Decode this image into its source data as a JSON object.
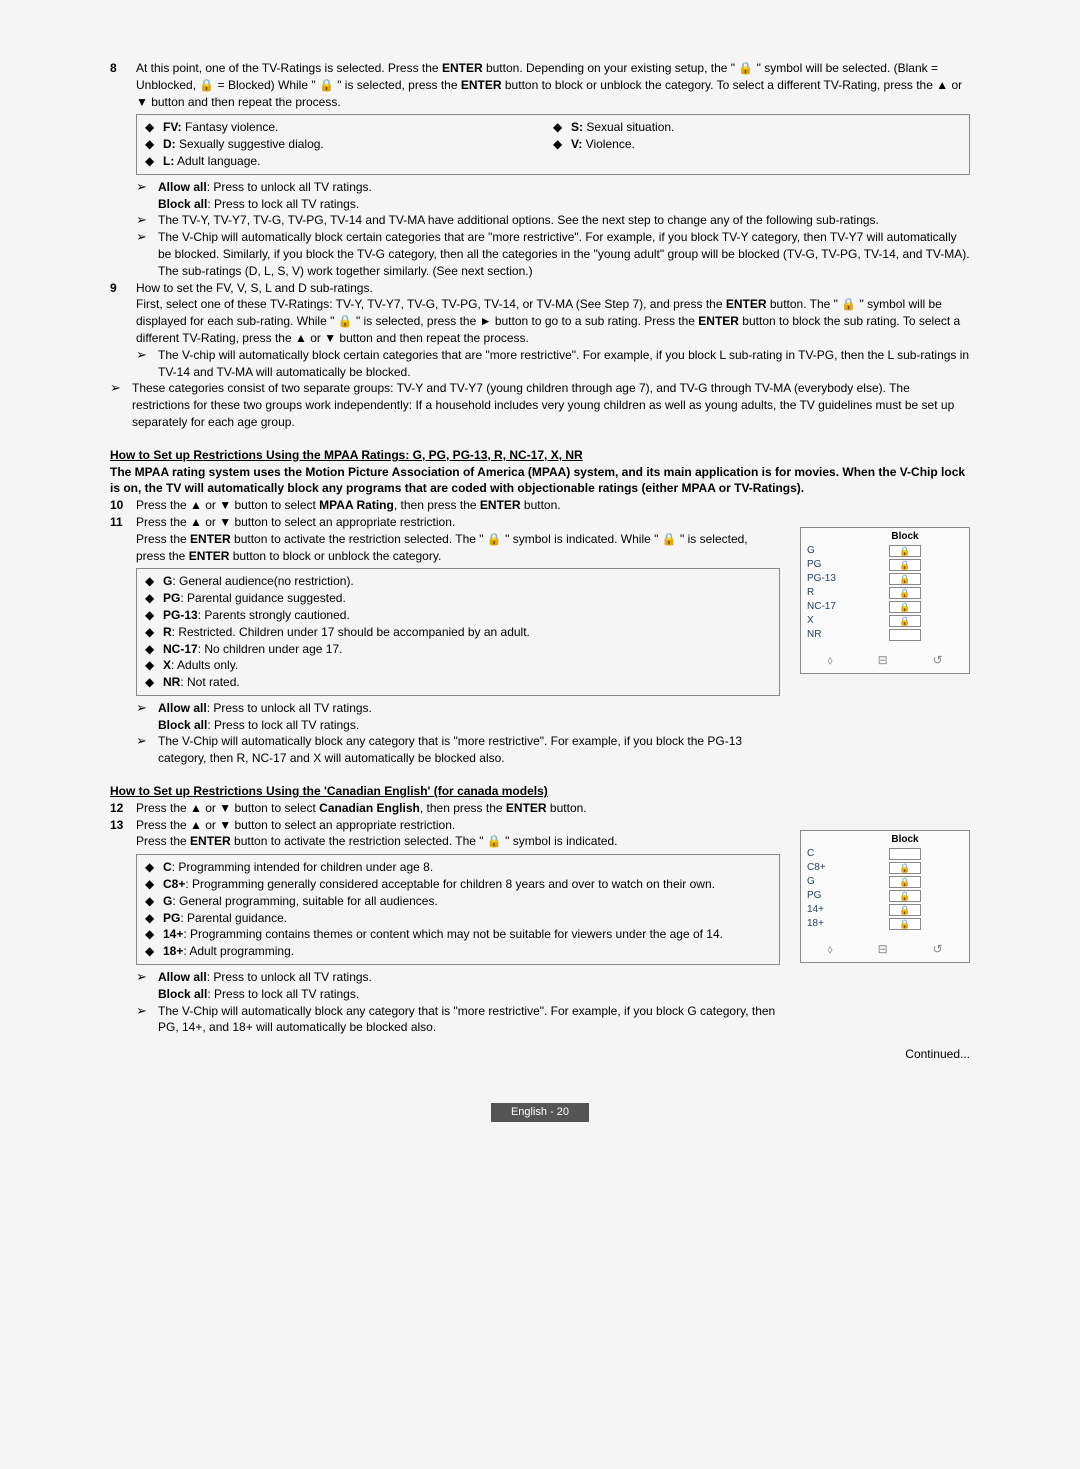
{
  "step8": {
    "num": "8",
    "text_parts": [
      "At this point, one of the TV-Ratings is selected. Press the ",
      "ENTER",
      " button. Depending on your existing setup, the \" 🔒 \" symbol will be selected. (Blank = Unblocked, 🔒 = Blocked) While \" 🔒 \" is selected, press the ",
      "ENTER",
      " button to block or unblock the category. To select a different TV-Rating, press the ▲ or ▼ button and then repeat the process."
    ]
  },
  "legend1": {
    "left": [
      {
        "b": "FV:",
        "t": " Fantasy violence."
      },
      {
        "b": "D:",
        "t": " Sexually suggestive dialog."
      },
      {
        "b": "L:",
        "t": " Adult language."
      }
    ],
    "right": [
      {
        "b": "S:",
        "t": " Sexual situation."
      },
      {
        "b": "V:",
        "t": " Violence."
      }
    ]
  },
  "arrows8": [
    {
      "b1": "Allow all",
      "t1": ": Press to unlock all TV ratings.",
      "b2": "Block all",
      "t2": ": Press to lock all TV ratings."
    },
    {
      "plain": "The TV-Y, TV-Y7, TV-G, TV-PG, TV-14 and TV-MA have additional options. See the next step to change any of the following sub-ratings."
    },
    {
      "plain": "The V-Chip will automatically block certain categories that are \"more restrictive\". For example, if you block TV-Y category, then TV-Y7 will automatically be blocked. Similarly, if you block the TV-G category, then all the categories in the \"young adult\" group will be blocked (TV-G, TV-PG, TV-14, and TV-MA). The sub-ratings (D, L, S, V) work together similarly. (See next section.)"
    }
  ],
  "step9": {
    "num": "9",
    "title": "How to set the FV, V, S, L and D sub-ratings.",
    "line_parts": [
      "First, select one of these TV-Ratings: TV-Y, TV-Y7, TV-G, TV-PG, TV-14, or TV-MA (See Step 7), and press the ",
      "ENTER",
      " button. The \" 🔒 \" symbol will be displayed for each sub-rating. While \" 🔒 \" is selected, press the ► button to go to a sub rating. Press the ",
      "ENTER",
      " button to block the sub rating. To select a different TV-Rating, press the ▲ or ▼ button and then repeat the process."
    ],
    "arrow": "The V-chip will automatically block certain categories that are \"more restrictive\". For example, if you block L sub-rating in TV-PG, then the L sub-ratings in TV-14 and TV-MA will automatically be blocked.",
    "note": "These categories consist of two separate groups: TV-Y and TV-Y7 (young children through age 7), and TV-G through TV-MA (everybody else). The restrictions for these two groups work independently: If a household includes very young children as well as young adults, the TV guidelines must be set up separately for each age group."
  },
  "mpaa": {
    "heading": "How to Set up Restrictions Using the MPAA Ratings: G, PG, PG-13, R, NC-17, X, NR",
    "intro": "The MPAA rating system uses the Motion Picture Association of America (MPAA) system, and its main application is for movies. When the V-Chip lock is on, the TV will automatically block any programs that are coded with objectionable ratings (either MPAA or TV-Ratings).",
    "step10": {
      "num": "10",
      "parts": [
        "Press the ▲ or ▼ button to select ",
        "MPAA Rating",
        ", then press the ",
        "ENTER",
        " button."
      ]
    },
    "step11": {
      "num": "11",
      "p1": "Press the ▲ or ▼ button to select an appropriate restriction.",
      "p2_parts": [
        "Press the ",
        "ENTER",
        " button to activate the restriction selected. The \" 🔒 \" symbol is indicated. While \" 🔒 \" is selected, press the ",
        "ENTER",
        " button to block or unblock the category."
      ]
    },
    "ratings": [
      {
        "b": "G",
        "t": ": General audience(no restriction)."
      },
      {
        "b": "PG",
        "t": ": Parental guidance suggested."
      },
      {
        "b": "PG-13",
        "t": ": Parents strongly cautioned."
      },
      {
        "b": "R",
        "t": ": Restricted. Children under 17 should be accompanied by an adult."
      },
      {
        "b": "NC-17",
        "t": ": No children under age 17."
      },
      {
        "b": "X",
        "t": ": Adults only."
      },
      {
        "b": "NR",
        "t": ": Not rated."
      }
    ],
    "arrows": [
      {
        "b1": "Allow all",
        "t1": ": Press to unlock all TV ratings.",
        "b2": "Block all",
        "t2": ": Press to lock all TV ratings."
      },
      {
        "plain": "The V-Chip will automatically block any category that is \"more restrictive\". For example, if you block the PG-13 category, then R, NC-17 and X will automatically be blocked also."
      }
    ],
    "chart": {
      "title": "Block",
      "rows": [
        "G",
        "PG",
        "PG-13",
        "R",
        "NC-17",
        "X",
        "NR"
      ],
      "lock": {
        "G": true,
        "PG": true,
        "PG-13": true,
        "R": true,
        "NC-17": true,
        "X": true,
        "NR": false
      }
    }
  },
  "canadian": {
    "heading": "How to Set up Restrictions Using the 'Canadian English' (for canada models)",
    "step12": {
      "num": "12",
      "parts": [
        "Press the ▲ or ▼ button to select ",
        "Canadian English",
        ", then press the ",
        "ENTER",
        " button."
      ]
    },
    "step13": {
      "num": "13",
      "p1": "Press the ▲ or ▼ button to select an appropriate restriction.",
      "p2_parts": [
        "Press the ",
        "ENTER",
        " button to activate the restriction selected. The \" 🔒 \" symbol is indicated."
      ]
    },
    "ratings": [
      {
        "b": "C",
        "t": ": Programming intended for children under age 8."
      },
      {
        "b": "C8+",
        "t": ": Programming generally considered acceptable for children 8 years and over to watch on their own."
      },
      {
        "b": "G",
        "t": ": General programming, suitable for all audiences."
      },
      {
        "b": "PG",
        "t": ": Parental guidance."
      },
      {
        "b": "14+",
        "t": ": Programming contains themes or content which may not be suitable for viewers under the age of 14."
      },
      {
        "b": "18+",
        "t": ": Adult programming."
      }
    ],
    "arrows": [
      {
        "b1": "Allow all",
        "t1": ": Press to unlock all TV ratings.",
        "b2": "Block all",
        "t2": ": Press to lock all TV ratings."
      },
      {
        "plain": "The V-Chip will automatically block any category that is \"more restrictive\". For example, if you block G category, then PG, 14+, and 18+ will automatically be blocked also."
      }
    ],
    "chart": {
      "title": "Block",
      "rows": [
        "C",
        "C8+",
        "G",
        "PG",
        "14+",
        "18+"
      ],
      "lock": {
        "C": false,
        "C8+": true,
        "G": true,
        "PG": true,
        "14+": true,
        "18+": true
      }
    }
  },
  "continued": "Continued...",
  "footer": "English - 20",
  "chart_colors": {
    "border": "#888",
    "label": "#4a6a8a",
    "bg": "#fafafa"
  },
  "chart_foot": {
    "left": "⬨",
    "mid": "⊟",
    "right": "↺"
  }
}
